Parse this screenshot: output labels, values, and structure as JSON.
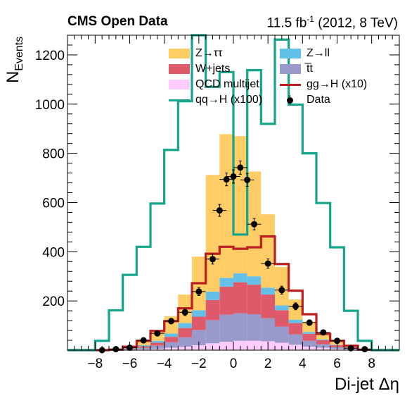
{
  "header": {
    "left": "CMS Open Data",
    "right_prefix": "11.5 fb",
    "right_sup": "-1",
    "right_suffix": " (2012, 8 TeV)"
  },
  "chart_data": {
    "type": "bar",
    "stacked": true,
    "xlabel": "Di-jet Δη",
    "ylabel": "N",
    "ylabel_sub": "Events",
    "xlim": [
      -9.6,
      9.6
    ],
    "ylim": [
      0,
      1280
    ],
    "xticks": [
      -8,
      -6,
      -4,
      -2,
      0,
      2,
      4,
      6,
      8
    ],
    "xtick_labels": [
      "−8",
      "−6",
      "−4",
      "−2",
      "0",
      "2",
      "4",
      "6",
      "8"
    ],
    "yticks": [
      200,
      400,
      600,
      800,
      1000,
      1200
    ],
    "bin_width": 0.8,
    "bin_edges": [
      -9.6,
      -8.8,
      -8.0,
      -7.2,
      -6.4,
      -5.6,
      -4.8,
      -4.0,
      -3.2,
      -2.4,
      -1.6,
      -0.8,
      0.0,
      0.8,
      1.6,
      2.4,
      3.2,
      4.0,
      4.8,
      5.6,
      6.4,
      7.2,
      8.0,
      8.8,
      9.6
    ],
    "series": [
      {
        "name": "QCD multijet",
        "color": "#ffccff",
        "values": [
          0,
          0,
          0,
          0,
          2,
          4,
          6,
          10,
          14,
          20,
          28,
          34,
          38,
          38,
          36,
          30,
          22,
          14,
          10,
          6,
          4,
          0,
          0,
          0
        ]
      },
      {
        "name": "t̅t",
        "color": "#9999cc",
        "values": [
          0,
          0,
          0,
          1,
          3,
          6,
          12,
          22,
          38,
          62,
          94,
          110,
          112,
          108,
          94,
          66,
          42,
          24,
          14,
          6,
          3,
          1,
          0,
          0
        ]
      },
      {
        "name": "W+jets",
        "color": "#de5a6a",
        "values": [
          0,
          0,
          0,
          1,
          3,
          6,
          12,
          22,
          38,
          54,
          82,
          114,
          126,
          120,
          96,
          66,
          46,
          28,
          16,
          8,
          4,
          1,
          0,
          0
        ]
      },
      {
        "name": "Z→ll",
        "color": "#64c0e8",
        "values": [
          0,
          0,
          0,
          1,
          2,
          4,
          8,
          14,
          20,
          26,
          34,
          36,
          36,
          34,
          28,
          20,
          14,
          8,
          4,
          2,
          1,
          0,
          0,
          0
        ]
      },
      {
        "name": "Z→ττ",
        "color": "#ffcc66",
        "values": [
          0,
          0,
          0,
          4,
          8,
          22,
          42,
          70,
          116,
          218,
          474,
          584,
          558,
          426,
          298,
          156,
          82,
          42,
          22,
          12,
          4,
          2,
          0,
          0
        ]
      }
    ],
    "lines": [
      {
        "name": "gg→H (x10)",
        "color": "#bb1f1f",
        "values": [
          0,
          0,
          0,
          2,
          14,
          38,
          78,
          118,
          170,
          272,
          392,
          420,
          412,
          418,
          462,
          350,
          242,
          146,
          66,
          38,
          18,
          2,
          0,
          0
        ]
      },
      {
        "name": "qq→H (x100)",
        "color": "#14a58a",
        "values": [
          0,
          0,
          38,
          162,
          306,
          420,
          596,
          814,
          1012,
          1310,
          1070,
          1130,
          470,
          1138,
          920,
          1262,
          998,
          800,
          598,
          418,
          160,
          38,
          0,
          0
        ]
      }
    ],
    "data": {
      "name": "Data",
      "color": "#000000",
      "x": [
        -7.6,
        -6.8,
        -6.0,
        -5.2,
        -4.4,
        -3.6,
        -2.8,
        -2.0,
        -1.2,
        -0.8,
        -0.4,
        0.0,
        0.4,
        0.8,
        1.2,
        2.0,
        2.8,
        3.6,
        4.4,
        5.2,
        6.0,
        6.8,
        7.6
      ],
      "y": [
        0,
        4,
        10,
        40,
        68,
        118,
        154,
        238,
        370,
        568,
        694,
        706,
        742,
        692,
        512,
        352,
        244,
        178,
        112,
        72,
        38,
        8,
        4
      ],
      "yerr": [
        1,
        3,
        4,
        7,
        9,
        11,
        13,
        16,
        20,
        24,
        26,
        27,
        27,
        26,
        23,
        19,
        16,
        14,
        11,
        9,
        7,
        3,
        2
      ]
    },
    "legend": {
      "placement": "top-center",
      "columns": 2,
      "entries": [
        {
          "label": "Z→ττ",
          "kind": "fill",
          "color": "#ffcc66"
        },
        {
          "label": "Z→ll",
          "kind": "fill",
          "color": "#64c0e8"
        },
        {
          "label": "W+jets",
          "kind": "fill",
          "color": "#de5a6a"
        },
        {
          "label": "t̅t",
          "kind": "fill",
          "color": "#9999cc"
        },
        {
          "label": "QCD multijet",
          "kind": "fill",
          "color": "#ffccff"
        },
        {
          "label": "gg→H (x10)",
          "kind": "line",
          "color": "#bb1f1f"
        },
        {
          "label": "qq→H (x100)",
          "kind": "line",
          "color": "#14a58a"
        },
        {
          "label": "Data",
          "kind": "marker",
          "color": "#000000"
        }
      ]
    },
    "grid": false
  }
}
